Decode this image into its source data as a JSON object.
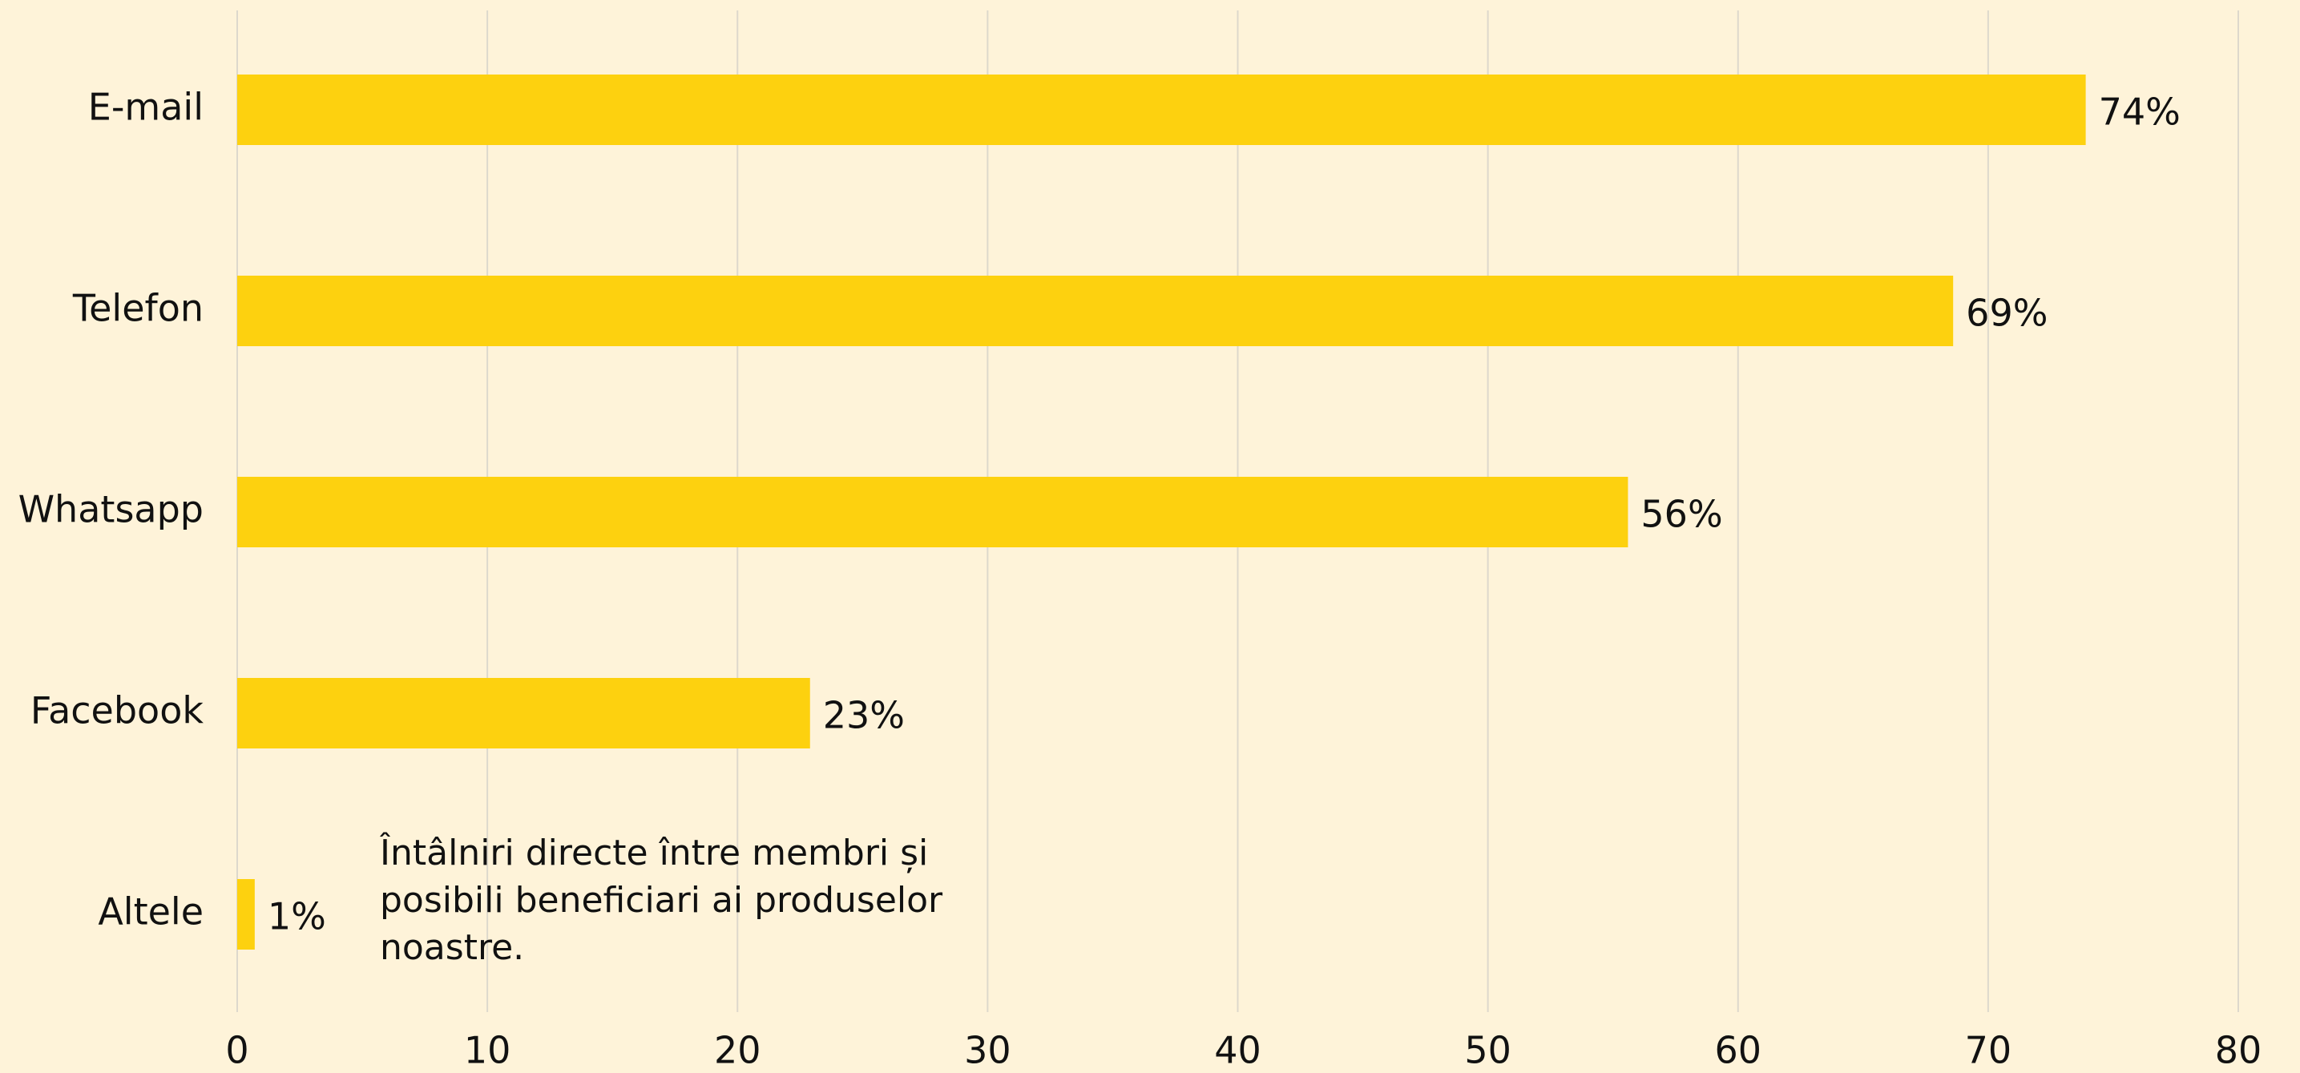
{
  "chart_data": {
    "type": "bar",
    "orientation": "horizontal",
    "categories": [
      "E-mail",
      "Telefon",
      "Whatsapp",
      "Facebook",
      "Altele"
    ],
    "values": [
      73.9,
      68.6,
      55.6,
      22.9,
      0.7
    ],
    "value_labels": [
      "74%",
      "69%",
      "56%",
      "23%",
      "1%"
    ],
    "color": "#fdd10f",
    "xlim": [
      0,
      80
    ],
    "xticks": [
      0,
      10,
      20,
      30,
      40,
      50,
      60,
      70,
      80
    ],
    "grid": true,
    "annotation": [
      "Întâlniri directe între membri și",
      "posibili beneficiari ai produselor",
      "noastre."
    ]
  }
}
